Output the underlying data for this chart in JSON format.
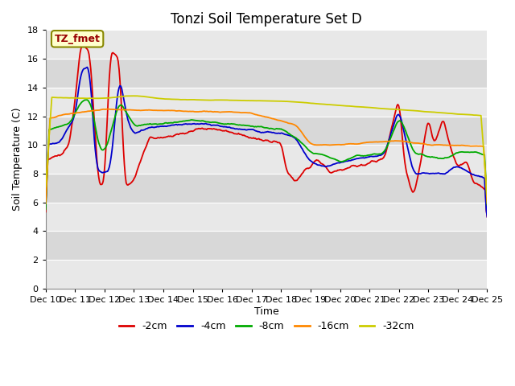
{
  "title": "Tonzi Soil Temperature Set D",
  "xlabel": "Time",
  "ylabel": "Soil Temperature (C)",
  "xlim": [
    0,
    15
  ],
  "ylim": [
    0,
    18
  ],
  "yticks": [
    0,
    2,
    4,
    6,
    8,
    10,
    12,
    14,
    16,
    18
  ],
  "xtick_labels": [
    "Dec 10",
    "Dec 11",
    "Dec 12",
    "Dec 13",
    "Dec 14",
    "Dec 15",
    "Dec 16",
    "Dec 17",
    "Dec 18",
    "Dec 19",
    "Dec 20",
    "Dec 21",
    "Dec 22",
    "Dec 23",
    "Dec 24",
    "Dec 25"
  ],
  "annotation_text": "TZ_fmet",
  "annotation_bg": "#ffffcc",
  "annotation_border": "#999900",
  "annotation_fg": "#990000",
  "colors": {
    "-2cm": "#dd0000",
    "-4cm": "#0000cc",
    "-8cm": "#00aa00",
    "-16cm": "#ff8800",
    "-32cm": "#cccc00"
  },
  "band_colors": [
    "#e8e8e8",
    "#d8d8d8"
  ],
  "n_points": 500,
  "title_fontsize": 12,
  "tick_fontsize": 8,
  "ylabel_fontsize": 9,
  "xlabel_fontsize": 9
}
